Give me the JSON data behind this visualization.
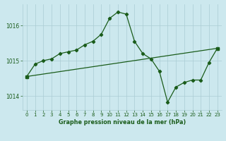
{
  "title": "Graphe pression niveau de la mer (hPa)",
  "bg_color": "#cce8ee",
  "grid_color": "#aaccd4",
  "line_color": "#1a5c1a",
  "xlim": [
    -0.5,
    23.5
  ],
  "ylim": [
    1013.6,
    1016.6
  ],
  "yticks": [
    1014,
    1015,
    1016
  ],
  "xticks": [
    0,
    1,
    2,
    3,
    4,
    5,
    6,
    7,
    8,
    9,
    10,
    11,
    12,
    13,
    14,
    15,
    16,
    17,
    18,
    19,
    20,
    21,
    22,
    23
  ],
  "series1_x": [
    0,
    1,
    2,
    3,
    4,
    5,
    6,
    7,
    8,
    9,
    10,
    11,
    12,
    13,
    14,
    15,
    16,
    17,
    18,
    19,
    20,
    21,
    22,
    23
  ],
  "series1_y": [
    1014.55,
    1014.9,
    1015.0,
    1015.05,
    1015.2,
    1015.25,
    1015.3,
    1015.45,
    1015.55,
    1015.75,
    1016.2,
    1016.38,
    1016.32,
    1015.55,
    1015.2,
    1015.05,
    1014.7,
    1013.82,
    1014.25,
    1014.38,
    1014.45,
    1014.45,
    1014.95,
    1015.35
  ],
  "series2_x": [
    0,
    23
  ],
  "series2_y": [
    1014.55,
    1015.35
  ],
  "marker_size": 2.2,
  "linewidth": 0.9,
  "title_fontsize": 5.8,
  "tick_fontsize": 5.0
}
